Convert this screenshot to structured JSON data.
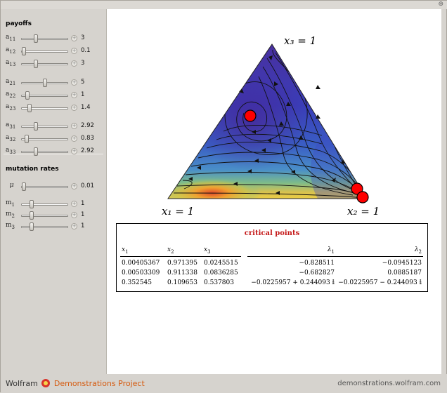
{
  "controls": {
    "payoffs_title": "payoffs",
    "mutation_title": "mutation rates",
    "payoffs": [
      {
        "id": "a11",
        "base": "a",
        "sub": "11",
        "value": "3",
        "pos": 0.3
      },
      {
        "id": "a12",
        "base": "a",
        "sub": "12",
        "value": "0.1",
        "pos": 0.02
      },
      {
        "id": "a13",
        "base": "a",
        "sub": "13",
        "value": "3",
        "pos": 0.3
      },
      {
        "id": "a21",
        "base": "a",
        "sub": "21",
        "value": "5",
        "pos": 0.5
      },
      {
        "id": "a22",
        "base": "a",
        "sub": "22",
        "value": "1",
        "pos": 0.1
      },
      {
        "id": "a23",
        "base": "a",
        "sub": "23",
        "value": "1.4",
        "pos": 0.14
      },
      {
        "id": "a31",
        "base": "a",
        "sub": "31",
        "value": "2.92",
        "pos": 0.29
      },
      {
        "id": "a32",
        "base": "a",
        "sub": "32",
        "value": "0.83",
        "pos": 0.08
      },
      {
        "id": "a33",
        "base": "a",
        "sub": "33",
        "value": "2.92",
        "pos": 0.29
      }
    ],
    "mu": {
      "label": "μ",
      "value": "0.01",
      "pos": 0.02
    },
    "m": [
      {
        "id": "m1",
        "base": "m",
        "sub": "1",
        "value": "1",
        "pos": 0.2
      },
      {
        "id": "m2",
        "base": "m",
        "sub": "2",
        "value": "1",
        "pos": 0.2
      },
      {
        "id": "m3",
        "base": "m",
        "sub": "3",
        "value": "1",
        "pos": 0.2
      }
    ]
  },
  "plot": {
    "vertex_top": "x₃ = 1",
    "vertex_left": "x₁ = 1",
    "vertex_right": "x₂ = 1",
    "critical_points_color": "#ff0000"
  },
  "table": {
    "title": "critical points",
    "headers": [
      "x1",
      "x2",
      "x3",
      "λ1",
      "λ2"
    ],
    "rows": [
      [
        "0.00405367",
        "0.971395",
        "0.0245515",
        "−0.828511",
        "−0.0945123"
      ],
      [
        "0.00503309",
        "0.911338",
        "0.0836285",
        "−0.682827",
        "0.0885187"
      ],
      [
        "0.352545",
        "0.109653",
        "0.537803",
        "−0.0225957 + 0.244093 𝕚",
        "−0.0225957 − 0.244093 𝕚"
      ]
    ]
  },
  "footer": {
    "brand_left": "Wolfram",
    "brand_right": "Demonstrations Project",
    "site": "demonstrations.wolfram.com"
  }
}
